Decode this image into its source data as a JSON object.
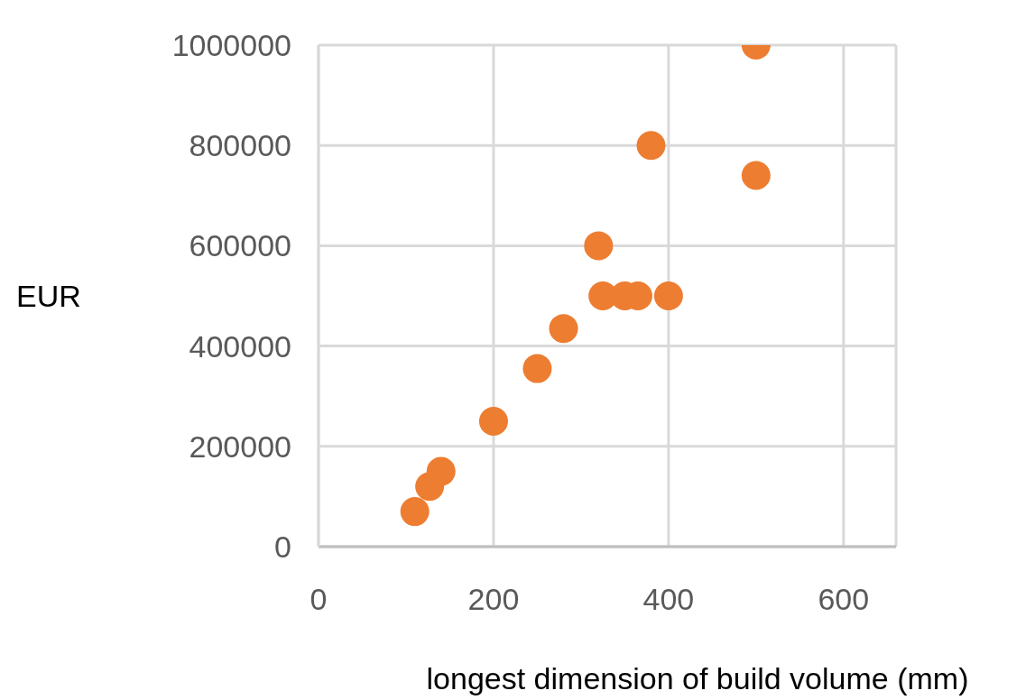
{
  "chart_data": {
    "type": "scatter",
    "xlabel": "longest dimension of build volume (mm)",
    "ylabel": "EUR",
    "x": [
      110,
      127,
      140,
      200,
      250,
      280,
      320,
      325,
      350,
      365,
      400,
      380,
      500,
      500
    ],
    "values": [
      70000,
      120000,
      150000,
      250000,
      355000,
      435000,
      600000,
      500000,
      500000,
      500000,
      500000,
      800000,
      1000000,
      740000
    ],
    "color": "#ed7d31",
    "marker": "circle",
    "xlim": [
      0,
      660
    ],
    "xticks": [
      0,
      200,
      400,
      600
    ],
    "ylim": [
      0,
      1000000
    ],
    "yticks": [
      0,
      200000,
      400000,
      600000,
      800000,
      1000000
    ],
    "grid": true
  }
}
